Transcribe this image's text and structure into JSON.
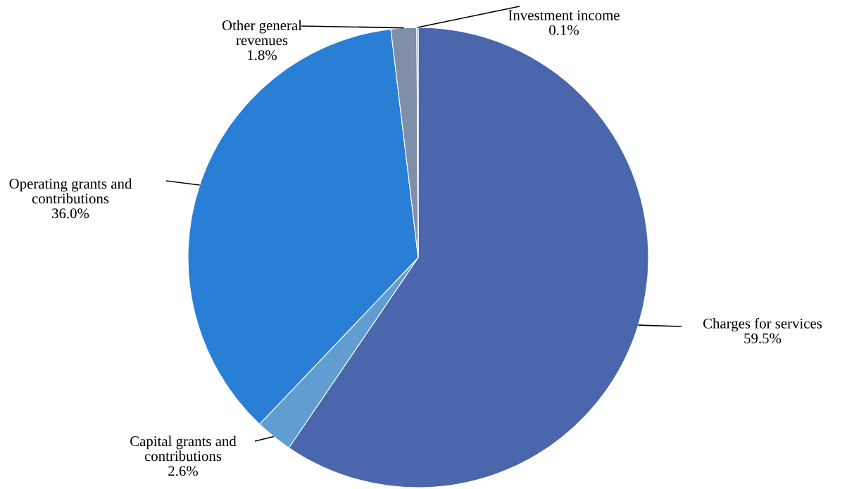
{
  "chart_data": {
    "type": "pie",
    "categories": [
      "Charges for services",
      "Capital grants and contributions",
      "Operating grants and contributions",
      "Other general revenues",
      "Investment income"
    ],
    "values": [
      59.5,
      2.6,
      36.0,
      1.8,
      0.1
    ],
    "value_labels": [
      "59.5%",
      "2.6%",
      "36.0%",
      "1.8%",
      "0.1%"
    ],
    "colors": [
      "#4a66ac",
      "#629dd1",
      "#297fd5",
      "#7f8fa9",
      "#3fa0a8"
    ]
  }
}
